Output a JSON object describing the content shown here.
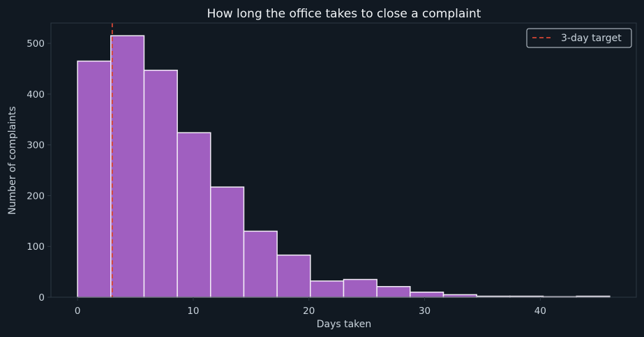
{
  "chart_data": {
    "type": "bar",
    "title": "How long the office takes to close a complaint",
    "xlabel": "Days taken",
    "ylabel": "Number of complaints",
    "xlim": [
      -2.3,
      48.3
    ],
    "ylim": [
      0,
      540
    ],
    "x_ticks": [
      0,
      10,
      20,
      30,
      40
    ],
    "y_ticks": [
      0,
      100,
      200,
      300,
      400,
      500
    ],
    "bin_edges": [
      0,
      2.875,
      5.75,
      8.625,
      11.5,
      14.375,
      17.25,
      20.125,
      23.0,
      25.875,
      28.75,
      31.625,
      34.5,
      37.375,
      40.25,
      43.125,
      46.0
    ],
    "values": [
      465,
      515,
      447,
      324,
      217,
      130,
      83,
      32,
      35,
      21,
      10,
      5,
      2,
      2,
      1,
      2
    ],
    "bar_color": "#a05fc0",
    "reference_line": {
      "x": 3,
      "label": "3-day target",
      "color": "#d64534",
      "style": "dashed"
    },
    "legend_position": "top-right",
    "grid": false
  },
  "colors": {
    "background": "#111922",
    "text": "#c9d3dc",
    "title": "#f0f3f6",
    "axis": "#2d3944",
    "bar_edge": "#f3edf7"
  }
}
